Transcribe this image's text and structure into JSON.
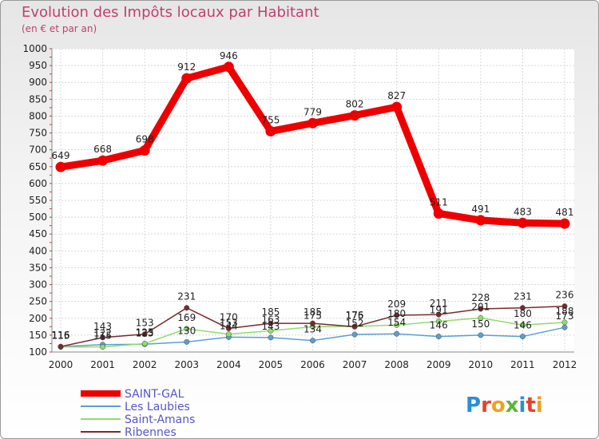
{
  "title": "Evolution des Impôts locaux par Habitant",
  "subtitle": "(en € et par an)",
  "logo": "Proxiti",
  "chart_data": {
    "type": "line",
    "title": "Evolution des Impôts locaux par Habitant",
    "subtitle": "(en € et par an)",
    "xlabel": "",
    "ylabel": "",
    "grid": true,
    "legend_position": "bottom-left",
    "x": [
      "2000",
      "2001",
      "2002",
      "2003",
      "2004",
      "2005",
      "2006",
      "2007",
      "2008",
      "2009",
      "2010",
      "2011",
      "2012"
    ],
    "ylim": [
      100,
      1000
    ],
    "yticks": [
      100,
      150,
      200,
      250,
      300,
      350,
      400,
      450,
      500,
      550,
      600,
      650,
      700,
      750,
      800,
      850,
      900,
      950,
      1000
    ],
    "series": [
      {
        "name": "SAINT-GAL",
        "color": "#ee0000",
        "values": [
          649,
          668,
          698,
          912,
          946,
          755,
          779,
          802,
          827,
          511,
          491,
          483,
          481
        ],
        "labels": [
          "649",
          "668",
          "698",
          "912",
          "946",
          "755",
          "779",
          "802",
          "827",
          "511",
          "491",
          "483",
          "481"
        ]
      },
      {
        "name": "Les Laubies",
        "color": "#5a9fd4",
        "values": [
          116,
          122,
          123,
          130,
          144,
          143,
          134,
          152,
          154,
          146,
          150,
          146,
          173
        ],
        "labels": [
          "116",
          "122",
          "123",
          "130",
          "144",
          "143",
          "134",
          "152",
          "154",
          "146",
          "150",
          "146",
          "173"
        ]
      },
      {
        "name": "Saint-Amans",
        "color": "#8fdc6c",
        "values": [
          115,
          115,
          125,
          169,
          153,
          163,
          175,
          176,
          180,
          191,
          201,
          180,
          188
        ],
        "labels": [
          "115",
          "115",
          "125",
          "169",
          "153",
          "163",
          "175",
          "176",
          "180",
          "191",
          "201",
          "180",
          "188"
        ]
      },
      {
        "name": "Ribennes",
        "color": "#7a2a2a",
        "values": [
          116,
          143,
          153,
          231,
          170,
          185,
          185,
          175,
          209,
          211,
          228,
          231,
          236
        ],
        "labels": [
          "116",
          "143",
          "153",
          "231",
          "170",
          "185",
          "185",
          "175",
          "209",
          "211",
          "228",
          "231",
          "236"
        ]
      }
    ]
  }
}
